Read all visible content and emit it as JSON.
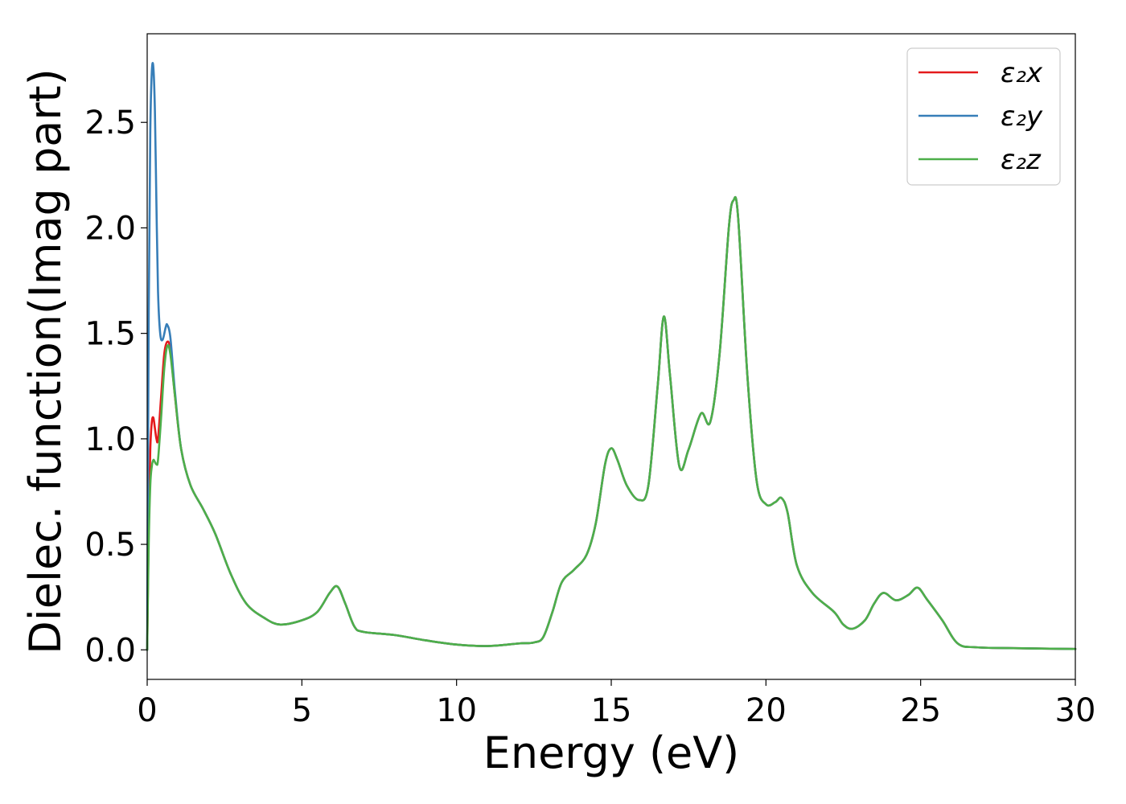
{
  "chart_data": {
    "type": "line",
    "xlabel": "Energy (eV)",
    "ylabel": "Dielec. function(Imag part)",
    "xlim": [
      0,
      30
    ],
    "ylim": [
      -0.14,
      2.92
    ],
    "xticks": [
      0,
      5,
      10,
      15,
      20,
      25,
      30
    ],
    "yticks": [
      0.0,
      0.5,
      1.0,
      1.5,
      2.0,
      2.5
    ],
    "xtick_labels": [
      "0",
      "5",
      "10",
      "15",
      "20",
      "25",
      "30"
    ],
    "ytick_labels": [
      "0.0",
      "0.5",
      "1.0",
      "1.5",
      "2.0",
      "2.5"
    ],
    "grid": false,
    "legend_position": "top-right",
    "series": [
      {
        "name": "ε₂x",
        "color": "#e41a1c",
        "points": [
          [
            0,
            0.0
          ],
          [
            0.05,
            0.6
          ],
          [
            0.1,
            0.95
          ],
          [
            0.15,
            1.08
          ],
          [
            0.2,
            1.1
          ],
          [
            0.25,
            1.05
          ],
          [
            0.3,
            1.0
          ],
          [
            0.35,
            1.0
          ],
          [
            0.45,
            1.2
          ],
          [
            0.55,
            1.4
          ],
          [
            0.65,
            1.46
          ],
          [
            0.75,
            1.42
          ],
          [
            0.9,
            1.2
          ],
          [
            1.1,
            0.95
          ],
          [
            1.4,
            0.78
          ],
          [
            1.8,
            0.67
          ],
          [
            2.2,
            0.55
          ],
          [
            2.7,
            0.36
          ],
          [
            3.2,
            0.22
          ],
          [
            3.8,
            0.15
          ],
          [
            4.3,
            0.12
          ],
          [
            5.0,
            0.14
          ],
          [
            5.5,
            0.18
          ],
          [
            5.9,
            0.27
          ],
          [
            6.15,
            0.3
          ],
          [
            6.4,
            0.22
          ],
          [
            6.7,
            0.11
          ],
          [
            7.0,
            0.085
          ],
          [
            8.0,
            0.07
          ],
          [
            9.0,
            0.045
          ],
          [
            10.0,
            0.025
          ],
          [
            11.0,
            0.018
          ],
          [
            12.0,
            0.03
          ],
          [
            12.5,
            0.035
          ],
          [
            12.8,
            0.06
          ],
          [
            13.1,
            0.18
          ],
          [
            13.4,
            0.32
          ],
          [
            13.8,
            0.38
          ],
          [
            14.2,
            0.45
          ],
          [
            14.5,
            0.6
          ],
          [
            14.8,
            0.88
          ],
          [
            15.0,
            0.955
          ],
          [
            15.2,
            0.9
          ],
          [
            15.5,
            0.78
          ],
          [
            15.9,
            0.71
          ],
          [
            16.2,
            0.78
          ],
          [
            16.5,
            1.25
          ],
          [
            16.7,
            1.58
          ],
          [
            16.9,
            1.3
          ],
          [
            17.2,
            0.87
          ],
          [
            17.5,
            0.95
          ],
          [
            17.9,
            1.12
          ],
          [
            18.2,
            1.08
          ],
          [
            18.5,
            1.4
          ],
          [
            18.8,
            2.0
          ],
          [
            18.95,
            2.13
          ],
          [
            19.1,
            2.05
          ],
          [
            19.4,
            1.3
          ],
          [
            19.7,
            0.8
          ],
          [
            20.0,
            0.69
          ],
          [
            20.3,
            0.7
          ],
          [
            20.5,
            0.72
          ],
          [
            20.7,
            0.65
          ],
          [
            21.0,
            0.4
          ],
          [
            21.5,
            0.27
          ],
          [
            22.2,
            0.18
          ],
          [
            22.5,
            0.12
          ],
          [
            22.8,
            0.1
          ],
          [
            23.2,
            0.14
          ],
          [
            23.5,
            0.22
          ],
          [
            23.8,
            0.27
          ],
          [
            24.2,
            0.235
          ],
          [
            24.6,
            0.26
          ],
          [
            24.9,
            0.295
          ],
          [
            25.2,
            0.24
          ],
          [
            25.7,
            0.14
          ],
          [
            26.2,
            0.03
          ],
          [
            26.8,
            0.012
          ],
          [
            28,
            0.008
          ],
          [
            30,
            0.004
          ]
        ]
      },
      {
        "name": "ε₂y",
        "color": "#377eb8",
        "points": [
          [
            0,
            0.0
          ],
          [
            0.05,
            1.6
          ],
          [
            0.1,
            2.45
          ],
          [
            0.15,
            2.74
          ],
          [
            0.2,
            2.76
          ],
          [
            0.25,
            2.55
          ],
          [
            0.3,
            2.1
          ],
          [
            0.35,
            1.7
          ],
          [
            0.42,
            1.5
          ],
          [
            0.5,
            1.47
          ],
          [
            0.6,
            1.53
          ],
          [
            0.65,
            1.54
          ],
          [
            0.75,
            1.48
          ],
          [
            0.9,
            1.22
          ],
          [
            1.1,
            0.95
          ],
          [
            1.4,
            0.78
          ],
          [
            1.8,
            0.67
          ],
          [
            2.2,
            0.55
          ],
          [
            2.7,
            0.36
          ],
          [
            3.2,
            0.22
          ],
          [
            3.8,
            0.15
          ],
          [
            4.3,
            0.12
          ],
          [
            5.0,
            0.14
          ],
          [
            5.5,
            0.18
          ],
          [
            5.9,
            0.27
          ],
          [
            6.15,
            0.3
          ],
          [
            6.4,
            0.22
          ],
          [
            6.7,
            0.11
          ],
          [
            7.0,
            0.085
          ],
          [
            8.0,
            0.07
          ],
          [
            9.0,
            0.045
          ],
          [
            10.0,
            0.025
          ],
          [
            11.0,
            0.018
          ],
          [
            12.0,
            0.03
          ],
          [
            12.5,
            0.035
          ],
          [
            12.8,
            0.06
          ],
          [
            13.1,
            0.18
          ],
          [
            13.4,
            0.32
          ],
          [
            13.8,
            0.38
          ],
          [
            14.2,
            0.45
          ],
          [
            14.5,
            0.6
          ],
          [
            14.8,
            0.88
          ],
          [
            15.0,
            0.955
          ],
          [
            15.2,
            0.9
          ],
          [
            15.5,
            0.78
          ],
          [
            15.9,
            0.71
          ],
          [
            16.2,
            0.78
          ],
          [
            16.5,
            1.25
          ],
          [
            16.7,
            1.58
          ],
          [
            16.9,
            1.3
          ],
          [
            17.2,
            0.87
          ],
          [
            17.5,
            0.95
          ],
          [
            17.9,
            1.12
          ],
          [
            18.2,
            1.08
          ],
          [
            18.5,
            1.4
          ],
          [
            18.8,
            2.0
          ],
          [
            18.95,
            2.13
          ],
          [
            19.1,
            2.05
          ],
          [
            19.4,
            1.3
          ],
          [
            19.7,
            0.8
          ],
          [
            20.0,
            0.69
          ],
          [
            20.3,
            0.7
          ],
          [
            20.5,
            0.72
          ],
          [
            20.7,
            0.65
          ],
          [
            21.0,
            0.4
          ],
          [
            21.5,
            0.27
          ],
          [
            22.2,
            0.18
          ],
          [
            22.5,
            0.12
          ],
          [
            22.8,
            0.1
          ],
          [
            23.2,
            0.14
          ],
          [
            23.5,
            0.22
          ],
          [
            23.8,
            0.27
          ],
          [
            24.2,
            0.235
          ],
          [
            24.6,
            0.26
          ],
          [
            24.9,
            0.295
          ],
          [
            25.2,
            0.24
          ],
          [
            25.7,
            0.14
          ],
          [
            26.2,
            0.03
          ],
          [
            26.8,
            0.012
          ],
          [
            28,
            0.008
          ],
          [
            30,
            0.004
          ]
        ]
      },
      {
        "name": "ε₂z",
        "color": "#4daf4a",
        "points": [
          [
            0,
            0.0
          ],
          [
            0.05,
            0.5
          ],
          [
            0.1,
            0.78
          ],
          [
            0.15,
            0.87
          ],
          [
            0.2,
            0.9
          ],
          [
            0.25,
            0.89
          ],
          [
            0.3,
            0.88
          ],
          [
            0.35,
            0.9
          ],
          [
            0.45,
            1.1
          ],
          [
            0.55,
            1.33
          ],
          [
            0.65,
            1.44
          ],
          [
            0.75,
            1.4
          ],
          [
            0.9,
            1.2
          ],
          [
            1.1,
            0.95
          ],
          [
            1.4,
            0.78
          ],
          [
            1.8,
            0.67
          ],
          [
            2.2,
            0.55
          ],
          [
            2.7,
            0.36
          ],
          [
            3.2,
            0.22
          ],
          [
            3.8,
            0.15
          ],
          [
            4.3,
            0.12
          ],
          [
            5.0,
            0.14
          ],
          [
            5.5,
            0.18
          ],
          [
            5.9,
            0.27
          ],
          [
            6.15,
            0.3
          ],
          [
            6.4,
            0.22
          ],
          [
            6.7,
            0.11
          ],
          [
            7.0,
            0.085
          ],
          [
            8.0,
            0.07
          ],
          [
            9.0,
            0.045
          ],
          [
            10.0,
            0.025
          ],
          [
            11.0,
            0.018
          ],
          [
            12.0,
            0.03
          ],
          [
            12.5,
            0.035
          ],
          [
            12.8,
            0.06
          ],
          [
            13.1,
            0.18
          ],
          [
            13.4,
            0.32
          ],
          [
            13.8,
            0.38
          ],
          [
            14.2,
            0.45
          ],
          [
            14.5,
            0.6
          ],
          [
            14.8,
            0.88
          ],
          [
            15.0,
            0.955
          ],
          [
            15.2,
            0.9
          ],
          [
            15.5,
            0.78
          ],
          [
            15.9,
            0.71
          ],
          [
            16.2,
            0.78
          ],
          [
            16.5,
            1.25
          ],
          [
            16.7,
            1.58
          ],
          [
            16.9,
            1.3
          ],
          [
            17.2,
            0.87
          ],
          [
            17.5,
            0.95
          ],
          [
            17.9,
            1.12
          ],
          [
            18.2,
            1.08
          ],
          [
            18.5,
            1.4
          ],
          [
            18.8,
            2.0
          ],
          [
            18.95,
            2.13
          ],
          [
            19.1,
            2.05
          ],
          [
            19.4,
            1.3
          ],
          [
            19.7,
            0.8
          ],
          [
            20.0,
            0.69
          ],
          [
            20.3,
            0.7
          ],
          [
            20.5,
            0.72
          ],
          [
            20.7,
            0.65
          ],
          [
            21.0,
            0.4
          ],
          [
            21.5,
            0.27
          ],
          [
            22.2,
            0.18
          ],
          [
            22.5,
            0.12
          ],
          [
            22.8,
            0.1
          ],
          [
            23.2,
            0.14
          ],
          [
            23.5,
            0.22
          ],
          [
            23.8,
            0.27
          ],
          [
            24.2,
            0.235
          ],
          [
            24.6,
            0.26
          ],
          [
            24.9,
            0.295
          ],
          [
            25.2,
            0.24
          ],
          [
            25.7,
            0.14
          ],
          [
            26.2,
            0.03
          ],
          [
            26.8,
            0.012
          ],
          [
            28,
            0.008
          ],
          [
            30,
            0.004
          ]
        ]
      }
    ]
  }
}
